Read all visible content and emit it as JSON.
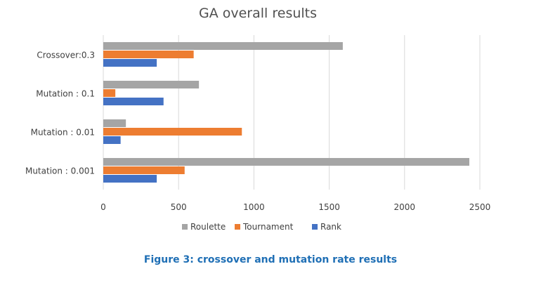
{
  "chart_data": {
    "type": "bar",
    "orientation": "horizontal",
    "title": "GA overall results",
    "categories": [
      "Crossover:0.3",
      "Mutation : 0.1",
      "Mutation : 0.01",
      "Mutation : 0.001"
    ],
    "series": [
      {
        "name": "Roulette",
        "values": [
          1590,
          635,
          150,
          2430
        ],
        "color": "#a5a5a5"
      },
      {
        "name": "Tournament",
        "values": [
          600,
          80,
          920,
          540
        ],
        "color": "#ed7d31"
      },
      {
        "name": "Rank",
        "values": [
          355,
          400,
          115,
          355
        ],
        "color": "#4472c4"
      }
    ],
    "xlim": [
      0,
      2500
    ],
    "xticks": [
      "0",
      "500",
      "1000",
      "1500",
      "2000",
      "2500"
    ],
    "grid": true,
    "legend_position": "bottom"
  },
  "caption": "Figure 3: crossover and mutation rate results"
}
